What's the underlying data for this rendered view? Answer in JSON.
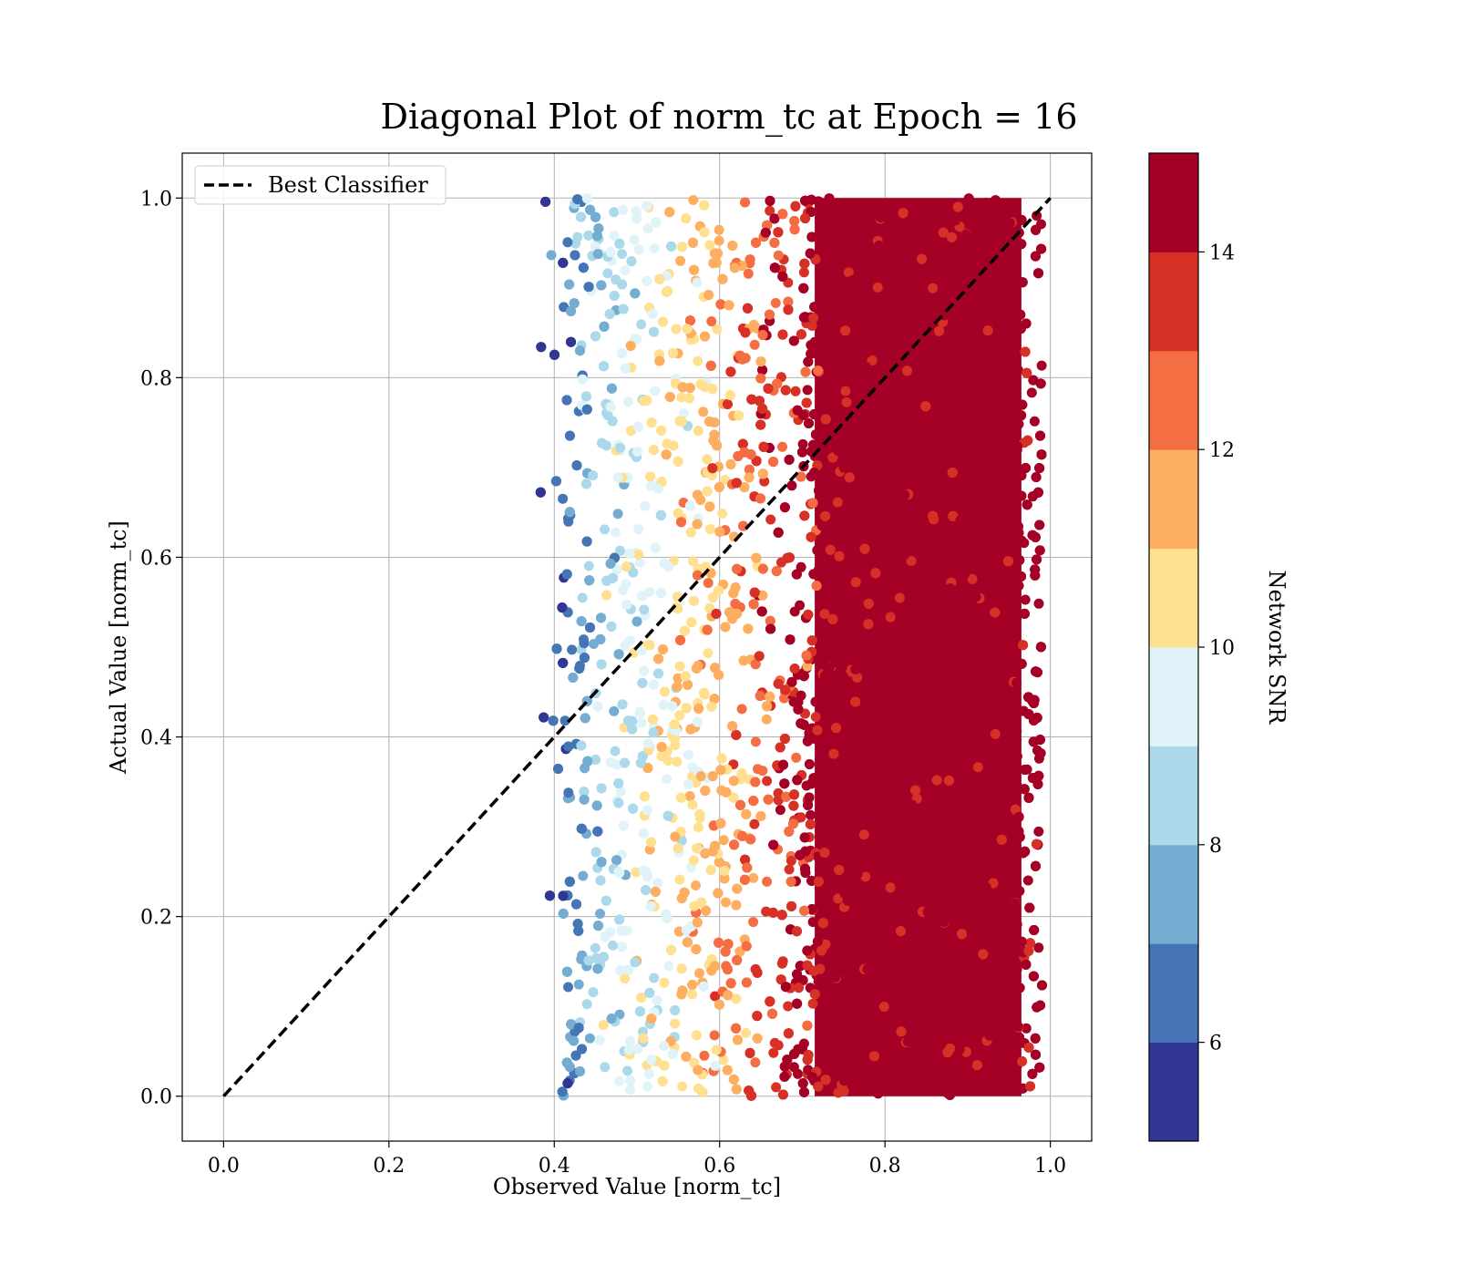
{
  "chart_data": {
    "type": "scatter",
    "title": "Diagonal Plot of norm_tc at Epoch = 16",
    "xlabel": "Observed Value [norm_tc]",
    "ylabel": "Actual Value [norm_tc]",
    "xlim": [
      -0.05,
      1.05
    ],
    "ylim": [
      -0.05,
      1.05
    ],
    "x_ticks": [
      0.0,
      0.2,
      0.4,
      0.6,
      0.8,
      1.0
    ],
    "y_ticks": [
      0.0,
      0.2,
      0.4,
      0.6,
      0.8,
      1.0
    ],
    "x_tick_labels": [
      "0.0",
      "0.2",
      "0.4",
      "0.6",
      "0.8",
      "1.0"
    ],
    "y_tick_labels": [
      "0.0",
      "0.2",
      "0.4",
      "0.6",
      "0.8",
      "1.0"
    ],
    "grid": true,
    "legend": {
      "placement": "top-left",
      "entries": [
        "Best Classifier"
      ]
    },
    "reference_line": {
      "name": "Best Classifier",
      "style": "dashed",
      "color": "#000000",
      "x": [
        0.0,
        1.0
      ],
      "y": [
        0.0,
        1.0
      ]
    },
    "scatter_series": {
      "observed_range": [
        0.38,
        0.99
      ],
      "actual_range": [
        0.0,
        1.0
      ],
      "color_variable": "Network SNR",
      "color_vs_observed": [
        {
          "x": 0.4,
          "snr": 5.5
        },
        {
          "x": 0.43,
          "snr": 7.5
        },
        {
          "x": 0.48,
          "snr": 9.0
        },
        {
          "x": 0.55,
          "snr": 10.5
        },
        {
          "x": 0.62,
          "snr": 12.0
        },
        {
          "x": 0.67,
          "snr": 13.5
        },
        {
          "x": 0.72,
          "snr": 14.5
        },
        {
          "x": 0.99,
          "snr": 15.0
        }
      ]
    },
    "colorbar": {
      "label": "Network SNR",
      "range": [
        5,
        15
      ],
      "bins": [
        5,
        6,
        7,
        8,
        9,
        10,
        11,
        12,
        13,
        14,
        15
      ],
      "tick_values": [
        6,
        8,
        10,
        12,
        14
      ],
      "tick_labels": [
        "6",
        "8",
        "10",
        "12",
        "14"
      ],
      "colors": [
        "#313695",
        "#4575b4",
        "#74add1",
        "#abd9e9",
        "#e0f3f8",
        "#fee090",
        "#fdae61",
        "#f46d43",
        "#d73027",
        "#a50026"
      ]
    }
  }
}
